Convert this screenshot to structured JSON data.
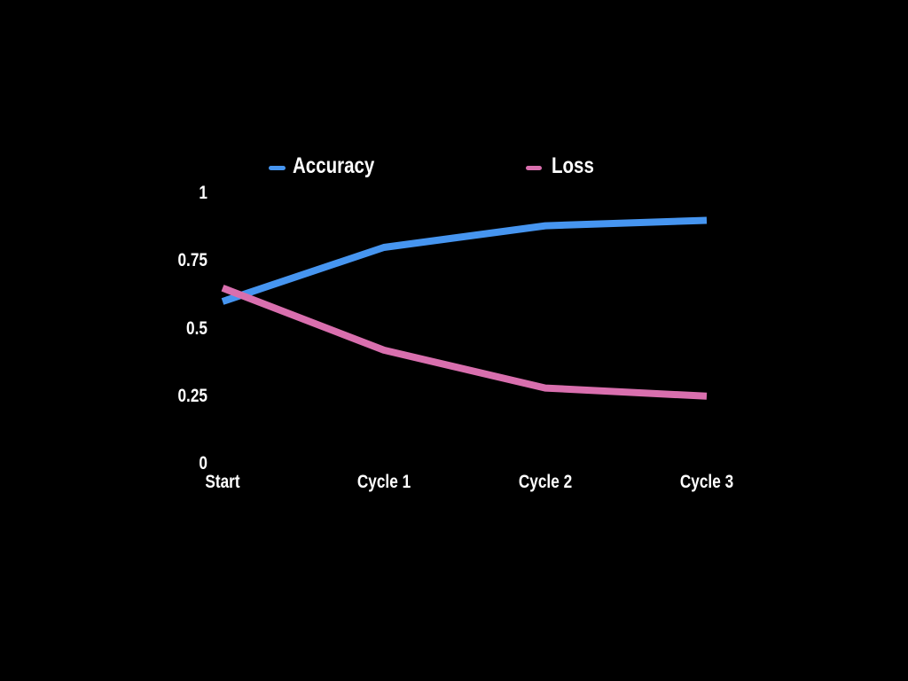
{
  "chart_data": {
    "type": "line",
    "title": "",
    "xlabel": "",
    "ylabel": "",
    "categories": [
      "Start",
      "Cycle 1",
      "Cycle 2",
      "Cycle 3"
    ],
    "series": [
      {
        "name": "Accuracy",
        "color": "#4695F0",
        "values": [
          0.6,
          0.8,
          0.88,
          0.9
        ]
      },
      {
        "name": "Loss",
        "color": "#D96FAE",
        "values": [
          0.65,
          0.42,
          0.28,
          0.25
        ]
      }
    ],
    "ylim": [
      0,
      1
    ],
    "y_tick_labels": [
      "1",
      "0.75",
      "0.5",
      "0.25",
      "0"
    ],
    "grid": false,
    "legend_position": "top",
    "background_color": "#000000",
    "text_color": "#FFFFFF"
  }
}
